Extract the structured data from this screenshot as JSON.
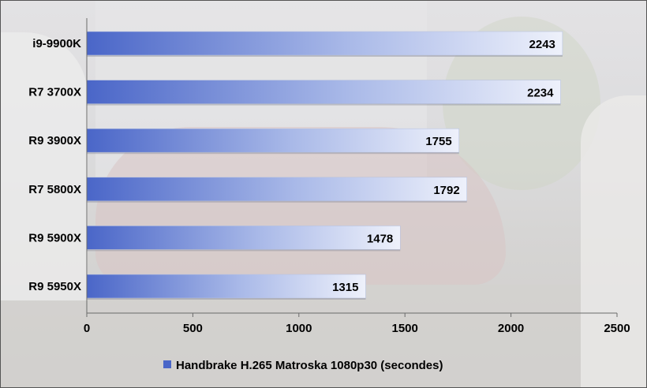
{
  "chart_data": {
    "type": "bar",
    "orientation": "horizontal",
    "categories": [
      "i9-9900K",
      "R7 3700X",
      "R9 3900X",
      "R7 5800X",
      "R9 5900X",
      "R9 5950X"
    ],
    "series": [
      {
        "name": "Handbrake H.265 Matroska 1080p30 (secondes)",
        "values": [
          2243,
          2234,
          1755,
          1792,
          1478,
          1315
        ],
        "color": "#4a66c8"
      }
    ],
    "xlim": [
      0,
      2500
    ],
    "xticks": [
      0,
      500,
      1000,
      1500,
      2000,
      2500
    ],
    "grid": false,
    "legend": "bottom",
    "data_labels": true
  }
}
